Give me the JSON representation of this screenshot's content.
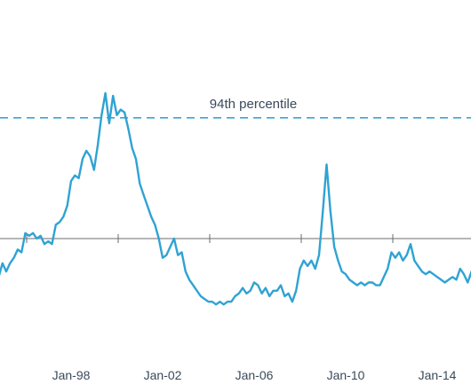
{
  "chart_data": {
    "type": "line",
    "title": "",
    "xlabel": "",
    "ylabel": "",
    "x_ticks": [
      "Jan-98",
      "Jan-02",
      "Jan-06",
      "Jan-10",
      "Jan-14"
    ],
    "xlim": [
      "1994-01",
      "2015-12"
    ],
    "ylim": [
      0,
      100
    ],
    "grid": false,
    "reference_lines": [
      {
        "label": "94th percentile",
        "y": 94,
        "style": "dashed",
        "color": "#33a7d5"
      },
      {
        "label": "",
        "y": 50,
        "style": "solid",
        "color": "#6b6b6b"
      }
    ],
    "series": [
      {
        "color": "#2fa3d3",
        "points": [
          [
            "1994-01",
            40
          ],
          [
            "1994-03",
            36
          ],
          [
            "1994-05",
            38
          ],
          [
            "1994-07",
            34
          ],
          [
            "1994-09",
            37
          ],
          [
            "1994-11",
            36
          ],
          [
            "1995-01",
            41
          ],
          [
            "1995-03",
            38
          ],
          [
            "1995-05",
            41
          ],
          [
            "1995-07",
            43
          ],
          [
            "1995-09",
            46
          ],
          [
            "1995-11",
            45
          ],
          [
            "1996-01",
            52
          ],
          [
            "1996-03",
            51
          ],
          [
            "1996-05",
            52
          ],
          [
            "1996-07",
            50
          ],
          [
            "1996-09",
            51
          ],
          [
            "1996-11",
            48
          ],
          [
            "1997-01",
            49
          ],
          [
            "1997-03",
            48
          ],
          [
            "1997-05",
            55
          ],
          [
            "1997-07",
            56
          ],
          [
            "1997-09",
            58
          ],
          [
            "1997-11",
            62
          ],
          [
            "1998-01",
            71
          ],
          [
            "1998-03",
            73
          ],
          [
            "1998-05",
            72
          ],
          [
            "1998-07",
            79
          ],
          [
            "1998-09",
            82
          ],
          [
            "1998-11",
            80
          ],
          [
            "1999-01",
            75
          ],
          [
            "1999-03",
            84
          ],
          [
            "1999-05",
            95
          ],
          [
            "1999-07",
            103
          ],
          [
            "1999-09",
            92
          ],
          [
            "1999-11",
            102
          ],
          [
            "2000-01",
            95
          ],
          [
            "2000-03",
            97
          ],
          [
            "2000-05",
            96
          ],
          [
            "2000-07",
            90
          ],
          [
            "2000-09",
            83
          ],
          [
            "2000-11",
            79
          ],
          [
            "2001-01",
            70
          ],
          [
            "2001-03",
            66
          ],
          [
            "2001-05",
            62
          ],
          [
            "2001-07",
            58
          ],
          [
            "2001-09",
            55
          ],
          [
            "2001-11",
            50
          ],
          [
            "2002-01",
            43
          ],
          [
            "2002-03",
            44
          ],
          [
            "2002-05",
            47
          ],
          [
            "2002-07",
            50
          ],
          [
            "2002-09",
            44
          ],
          [
            "2002-11",
            45
          ],
          [
            "2003-01",
            38
          ],
          [
            "2003-03",
            35
          ],
          [
            "2003-05",
            33
          ],
          [
            "2003-07",
            31
          ],
          [
            "2003-09",
            29
          ],
          [
            "2003-11",
            28
          ],
          [
            "2004-01",
            27
          ],
          [
            "2004-03",
            27
          ],
          [
            "2004-05",
            26
          ],
          [
            "2004-07",
            27
          ],
          [
            "2004-09",
            26
          ],
          [
            "2004-11",
            27
          ],
          [
            "2005-01",
            27
          ],
          [
            "2005-03",
            29
          ],
          [
            "2005-05",
            30
          ],
          [
            "2005-07",
            32
          ],
          [
            "2005-09",
            30
          ],
          [
            "2005-11",
            31
          ],
          [
            "2006-01",
            34
          ],
          [
            "2006-03",
            33
          ],
          [
            "2006-05",
            30
          ],
          [
            "2006-07",
            32
          ],
          [
            "2006-09",
            29
          ],
          [
            "2006-11",
            31
          ],
          [
            "2007-01",
            31
          ],
          [
            "2007-03",
            33
          ],
          [
            "2007-05",
            29
          ],
          [
            "2007-07",
            30
          ],
          [
            "2007-09",
            27
          ],
          [
            "2007-11",
            31
          ],
          [
            "2008-01",
            39
          ],
          [
            "2008-03",
            42
          ],
          [
            "2008-05",
            40
          ],
          [
            "2008-07",
            42
          ],
          [
            "2008-09",
            39
          ],
          [
            "2008-11",
            44
          ],
          [
            "2009-01",
            60
          ],
          [
            "2009-03",
            77
          ],
          [
            "2009-05",
            60
          ],
          [
            "2009-07",
            47
          ],
          [
            "2009-09",
            42
          ],
          [
            "2009-11",
            38
          ],
          [
            "2010-01",
            37
          ],
          [
            "2010-03",
            35
          ],
          [
            "2010-05",
            34
          ],
          [
            "2010-07",
            33
          ],
          [
            "2010-09",
            34
          ],
          [
            "2010-11",
            33
          ],
          [
            "2011-01",
            34
          ],
          [
            "2011-03",
            34
          ],
          [
            "2011-05",
            33
          ],
          [
            "2011-07",
            33
          ],
          [
            "2011-09",
            36
          ],
          [
            "2011-11",
            39
          ],
          [
            "2012-01",
            45
          ],
          [
            "2012-03",
            43
          ],
          [
            "2012-05",
            45
          ],
          [
            "2012-07",
            42
          ],
          [
            "2012-09",
            44
          ],
          [
            "2012-11",
            48
          ],
          [
            "2013-01",
            42
          ],
          [
            "2013-03",
            40
          ],
          [
            "2013-05",
            38
          ],
          [
            "2013-07",
            37
          ],
          [
            "2013-09",
            38
          ],
          [
            "2013-11",
            37
          ],
          [
            "2014-01",
            36
          ],
          [
            "2014-03",
            35
          ],
          [
            "2014-05",
            34
          ],
          [
            "2014-07",
            35
          ],
          [
            "2014-09",
            36
          ],
          [
            "2014-11",
            35
          ],
          [
            "2015-01",
            39
          ],
          [
            "2015-03",
            37
          ],
          [
            "2015-05",
            34
          ],
          [
            "2015-07",
            38
          ],
          [
            "2015-09",
            41
          ],
          [
            "2015-11",
            43
          ]
        ]
      }
    ]
  }
}
